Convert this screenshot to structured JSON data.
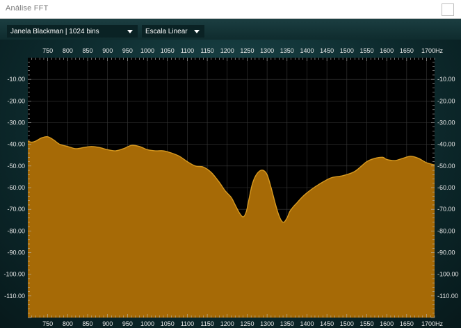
{
  "window": {
    "title": "Análise FFT"
  },
  "toolbar": {
    "window_select": "Janela Blackman | 1024 bins",
    "scale_select": "Escala Linear"
  },
  "colors": {
    "fill": "#a66a06",
    "stroke": "#d89a20",
    "plot_bg": "#000000",
    "frame_bg": "#0c2426",
    "grid": "#3a3a3a",
    "text": "#e8e8e8"
  },
  "chart_data": {
    "type": "area",
    "x_tick_labels": [
      "750",
      "800",
      "850",
      "900",
      "950",
      "1000",
      "1050",
      "1100",
      "1150",
      "1200",
      "1250",
      "1300",
      "1350",
      "1400",
      "1450",
      "1500",
      "1550",
      "1600",
      "1650",
      "1700Hz"
    ],
    "y_tick_labels": [
      "-10.00",
      "-20.00",
      "-30.00",
      "-40.00",
      "-50.00",
      "-60.00",
      "-70.00",
      "-80.00",
      "-90.00",
      "-100.00",
      "-110.00"
    ],
    "xlim": [
      700,
      1720
    ],
    "ylim": [
      -120,
      0
    ],
    "series": [
      {
        "x": [
          700,
          710,
          720,
          735,
          750,
          765,
          780,
          800,
          820,
          840,
          860,
          880,
          900,
          920,
          940,
          960,
          980,
          1000,
          1020,
          1040,
          1060,
          1080,
          1100,
          1120,
          1140,
          1160,
          1180,
          1195,
          1210,
          1220,
          1230,
          1240,
          1248,
          1255,
          1262,
          1270,
          1280,
          1290,
          1300,
          1310,
          1320,
          1328,
          1335,
          1342,
          1350,
          1357,
          1365,
          1375,
          1390,
          1410,
          1430,
          1460,
          1490,
          1520,
          1550,
          1570,
          1590,
          1600,
          1620,
          1640,
          1660,
          1680,
          1700,
          1720
        ],
        "y": [
          -38.5,
          -39,
          -38.5,
          -37,
          -36.5,
          -38,
          -40,
          -41,
          -42,
          -41.5,
          -41,
          -41.5,
          -42.5,
          -43,
          -42,
          -40.5,
          -41,
          -42.5,
          -43,
          -43,
          -44,
          -45.5,
          -48,
          -50,
          -50.5,
          -53,
          -57.5,
          -61.5,
          -64.5,
          -68,
          -71.5,
          -73.5,
          -71,
          -65,
          -59,
          -55,
          -52.5,
          -52,
          -54,
          -60,
          -67,
          -72,
          -75,
          -76,
          -74,
          -71,
          -69,
          -67,
          -64,
          -61,
          -58.5,
          -55.5,
          -54.5,
          -52.5,
          -48,
          -46.5,
          -46,
          -47,
          -47.5,
          -46.5,
          -45.5,
          -46.5,
          -48.5,
          -49.5
        ]
      }
    ],
    "grid": true
  }
}
